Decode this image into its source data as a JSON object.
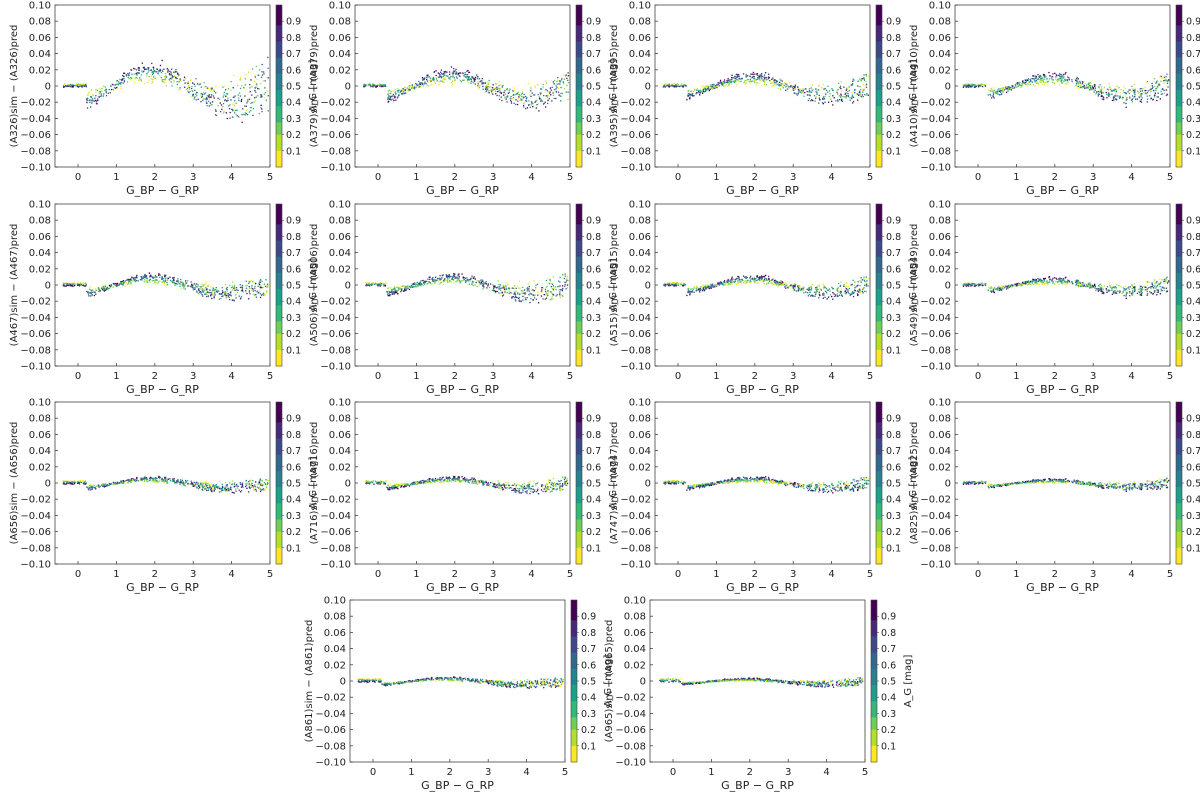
{
  "figure": {
    "description_free": true,
    "xlabel": "G_BP − G_RP",
    "colorbar_label": "A_G [mag]",
    "colormap": [
      "#fde725",
      "#b5de2b",
      "#6ece58",
      "#35b779",
      "#1f9e89",
      "#26828e",
      "#31688e",
      "#3e4989",
      "#482878",
      "#440154"
    ],
    "axis_color": "#444444"
  },
  "chart_data": [
    {
      "type": "scatter",
      "band": "326",
      "ylabel_main": "(A",
      "ylabel_sub1": "326",
      "ylabel_mid": ")",
      "ylabel_sub_sim": "sim",
      "ylabel_minus": " − (A",
      "ylabel_sub2": "326",
      "ylabel_end": ")",
      "ylabel_sub_pred": "pred",
      "xlim": [
        -0.6,
        5
      ],
      "ylim": [
        -0.1,
        0.1
      ],
      "amp": 0.02,
      "scatter": 0.03,
      "xticks": [
        "0",
        "1",
        "2",
        "3",
        "4",
        "5"
      ],
      "yticks": [
        "0.10",
        "0.08",
        "0.06",
        "0.04",
        "0.02",
        "0",
        "−0.02",
        "−0.04",
        "−0.06",
        "−0.08",
        "−0.10"
      ],
      "cticks": [
        "0.9",
        "0.8",
        "0.7",
        "0.6",
        "0.5",
        "0.4",
        "0.3",
        "0.2",
        "0.1"
      ]
    },
    {
      "type": "scatter",
      "band": "379",
      "xlim": [
        -0.6,
        5
      ],
      "ylim": [
        -0.1,
        0.1
      ],
      "amp": 0.015,
      "scatter": 0.015,
      "xticks": [
        "0",
        "1",
        "2",
        "3",
        "4",
        "5"
      ],
      "yticks": [
        "0.10",
        "0.08",
        "0.06",
        "0.04",
        "0.02",
        "0",
        "−0.02",
        "−0.04",
        "−0.06",
        "−0.08",
        "−0.10"
      ],
      "cticks": [
        "0.9",
        "0.8",
        "0.7",
        "0.6",
        "0.5",
        "0.4",
        "0.3",
        "0.2",
        "0.1"
      ]
    },
    {
      "type": "scatter",
      "band": "395",
      "xlim": [
        -0.6,
        5
      ],
      "ylim": [
        -0.1,
        0.1
      ],
      "amp": 0.012,
      "scatter": 0.014,
      "xticks": [
        "0",
        "1",
        "2",
        "3",
        "4",
        "5"
      ],
      "yticks": [
        "0.10",
        "0.08",
        "0.06",
        "0.04",
        "0.02",
        "0",
        "−0.02",
        "−0.04",
        "−0.06",
        "−0.08",
        "−0.10"
      ],
      "cticks": [
        "0.9",
        "0.8",
        "0.7",
        "0.6",
        "0.5",
        "0.4",
        "0.3",
        "0.2",
        "0.1"
      ]
    },
    {
      "type": "scatter",
      "band": "410",
      "xlim": [
        -0.6,
        5
      ],
      "ylim": [
        -0.1,
        0.1
      ],
      "amp": 0.012,
      "scatter": 0.013,
      "xticks": [
        "0",
        "1",
        "2",
        "3",
        "4",
        "5"
      ],
      "yticks": [
        "0.10",
        "0.08",
        "0.06",
        "0.04",
        "0.02",
        "0",
        "−0.02",
        "−0.04",
        "−0.06",
        "−0.08",
        "−0.10"
      ],
      "cticks": [
        "0.9",
        "0.8",
        "0.7",
        "0.6",
        "0.5",
        "0.4",
        "0.3",
        "0.2",
        "0.1"
      ]
    },
    {
      "type": "scatter",
      "band": "467",
      "xlim": [
        -0.6,
        5
      ],
      "ylim": [
        -0.1,
        0.1
      ],
      "amp": 0.01,
      "scatter": 0.012,
      "xticks": [
        "0",
        "1",
        "2",
        "3",
        "4",
        "5"
      ],
      "yticks": [
        "0.10",
        "0.08",
        "0.06",
        "0.04",
        "0.02",
        "0",
        "−0.02",
        "−0.04",
        "−0.06",
        "−0.08",
        "−0.10"
      ],
      "cticks": [
        "0.9",
        "0.8",
        "0.7",
        "0.6",
        "0.5",
        "0.4",
        "0.3",
        "0.2",
        "0.1"
      ]
    },
    {
      "type": "scatter",
      "band": "506",
      "xlim": [
        -0.6,
        5
      ],
      "ylim": [
        -0.1,
        0.1
      ],
      "amp": 0.01,
      "scatter": 0.014,
      "xticks": [
        "0",
        "1",
        "2",
        "3",
        "4",
        "5"
      ],
      "yticks": [
        "0.10",
        "0.08",
        "0.06",
        "0.04",
        "0.02",
        "0",
        "−0.02",
        "−0.04",
        "−0.06",
        "−0.08",
        "−0.10"
      ],
      "cticks": [
        "0.9",
        "0.8",
        "0.7",
        "0.6",
        "0.5",
        "0.4",
        "0.3",
        "0.2",
        "0.1"
      ]
    },
    {
      "type": "scatter",
      "band": "515",
      "xlim": [
        -0.6,
        5
      ],
      "ylim": [
        -0.1,
        0.1
      ],
      "amp": 0.009,
      "scatter": 0.01,
      "xticks": [
        "0",
        "1",
        "2",
        "3",
        "4",
        "5"
      ],
      "yticks": [
        "0.10",
        "0.08",
        "0.06",
        "0.04",
        "0.02",
        "0",
        "−0.02",
        "−0.04",
        "−0.06",
        "−0.08",
        "−0.10"
      ],
      "cticks": [
        "0.9",
        "0.8",
        "0.7",
        "0.6",
        "0.5",
        "0.4",
        "0.3",
        "0.2",
        "0.1"
      ]
    },
    {
      "type": "scatter",
      "band": "549",
      "xlim": [
        -0.6,
        5
      ],
      "ylim": [
        -0.1,
        0.1
      ],
      "amp": 0.007,
      "scatter": 0.009,
      "xticks": [
        "0",
        "1",
        "2",
        "3",
        "4",
        "5"
      ],
      "yticks": [
        "0.10",
        "0.08",
        "0.06",
        "0.04",
        "0.02",
        "0",
        "−0.02",
        "−0.04",
        "−0.06",
        "−0.08",
        "−0.10"
      ],
      "cticks": [
        "0.9",
        "0.8",
        "0.7",
        "0.6",
        "0.5",
        "0.4",
        "0.3",
        "0.2",
        "0.1"
      ]
    },
    {
      "type": "scatter",
      "band": "656",
      "xlim": [
        -0.6,
        5
      ],
      "ylim": [
        -0.1,
        0.1
      ],
      "amp": 0.006,
      "scatter": 0.008,
      "xticks": [
        "0",
        "1",
        "2",
        "3",
        "4",
        "5"
      ],
      "yticks": [
        "0.10",
        "0.08",
        "0.06",
        "0.04",
        "0.02",
        "0",
        "−0.02",
        "−0.04",
        "−0.06",
        "−0.08",
        "−0.10"
      ],
      "cticks": [
        "0.9",
        "0.8",
        "0.7",
        "0.6",
        "0.5",
        "0.4",
        "0.3",
        "0.2",
        "0.1"
      ]
    },
    {
      "type": "scatter",
      "band": "716",
      "xlim": [
        -0.6,
        5
      ],
      "ylim": [
        -0.1,
        0.1
      ],
      "amp": 0.006,
      "scatter": 0.008,
      "xticks": [
        "0",
        "1",
        "2",
        "3",
        "4",
        "5"
      ],
      "yticks": [
        "0.10",
        "0.08",
        "0.06",
        "0.04",
        "0.02",
        "0",
        "−0.02",
        "−0.04",
        "−0.06",
        "−0.08",
        "−0.10"
      ],
      "cticks": [
        "0.9",
        "0.8",
        "0.7",
        "0.6",
        "0.5",
        "0.4",
        "0.3",
        "0.2",
        "0.1"
      ]
    },
    {
      "type": "scatter",
      "band": "747",
      "xlim": [
        -0.6,
        5
      ],
      "ylim": [
        -0.1,
        0.1
      ],
      "amp": 0.006,
      "scatter": 0.007,
      "xticks": [
        "0",
        "1",
        "2",
        "3",
        "4",
        "5"
      ],
      "yticks": [
        "0.10",
        "0.08",
        "0.06",
        "0.04",
        "0.02",
        "0",
        "−0.02",
        "−0.04",
        "−0.06",
        "−0.08",
        "−0.10"
      ],
      "cticks": [
        "0.9",
        "0.8",
        "0.7",
        "0.6",
        "0.5",
        "0.4",
        "0.3",
        "0.2",
        "0.1"
      ]
    },
    {
      "type": "scatter",
      "band": "825",
      "xlim": [
        -0.6,
        5
      ],
      "ylim": [
        -0.1,
        0.1
      ],
      "amp": 0.004,
      "scatter": 0.006,
      "xticks": [
        "0",
        "1",
        "2",
        "3",
        "4",
        "5"
      ],
      "yticks": [
        "0.10",
        "0.08",
        "0.06",
        "0.04",
        "0.02",
        "0",
        "−0.02",
        "−0.04",
        "−0.06",
        "−0.08",
        "−0.10"
      ],
      "cticks": [
        "0.9",
        "0.8",
        "0.7",
        "0.6",
        "0.5",
        "0.4",
        "0.3",
        "0.2",
        "0.1"
      ]
    },
    {
      "type": "scatter",
      "band": "861",
      "xlim": [
        -0.6,
        5
      ],
      "ylim": [
        -0.1,
        0.1
      ],
      "amp": 0.004,
      "scatter": 0.006,
      "xticks": [
        "0",
        "1",
        "2",
        "3",
        "4",
        "5"
      ],
      "yticks": [
        "0.10",
        "0.08",
        "0.06",
        "0.04",
        "0.02",
        "0",
        "−0.02",
        "−0.04",
        "−0.06",
        "−0.08",
        "−0.10"
      ],
      "cticks": [
        "0.9",
        "0.8",
        "0.7",
        "0.6",
        "0.5",
        "0.4",
        "0.3",
        "0.2",
        "0.1"
      ]
    },
    {
      "type": "scatter",
      "band": "965",
      "xlim": [
        -0.6,
        5
      ],
      "ylim": [
        -0.1,
        0.1
      ],
      "amp": 0.003,
      "scatter": 0.005,
      "xticks": [
        "0",
        "1",
        "2",
        "3",
        "4",
        "5"
      ],
      "yticks": [
        "0.10",
        "0.08",
        "0.06",
        "0.04",
        "0.02",
        "0",
        "−0.02",
        "−0.04",
        "−0.06",
        "−0.08",
        "−0.10"
      ],
      "cticks": [
        "0.9",
        "0.8",
        "0.7",
        "0.6",
        "0.5",
        "0.4",
        "0.3",
        "0.2",
        "0.1"
      ]
    }
  ]
}
